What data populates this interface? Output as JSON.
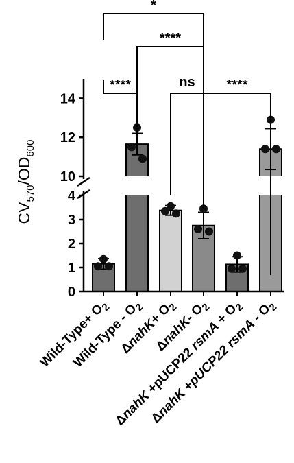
{
  "chart_data": {
    "type": "bar",
    "ylabel": {
      "main": "CV",
      "sub1": "570",
      "mid": "/OD",
      "sub2": "600"
    },
    "categories": [
      {
        "parts": [
          {
            "t": "Wild-Type+ O"
          },
          {
            "t": "2",
            "sub": true
          }
        ]
      },
      {
        "parts": [
          {
            "t": "Wild-Type - O"
          },
          {
            "t": "2",
            "sub": true
          }
        ]
      },
      {
        "parts": [
          {
            "t": "Δ"
          },
          {
            "t": "nahK",
            "it": true
          },
          {
            "t": "+ O"
          },
          {
            "t": "2",
            "sub": true
          }
        ]
      },
      {
        "parts": [
          {
            "t": "Δ"
          },
          {
            "t": "nahK",
            "it": true
          },
          {
            "t": "- O"
          },
          {
            "t": "2",
            "sub": true
          }
        ]
      },
      {
        "parts": [
          {
            "t": "Δ"
          },
          {
            "t": "nahK",
            "it": true
          },
          {
            "t": " +pUCP22 "
          },
          {
            "t": "rsmA",
            "it": true
          },
          {
            "t": " + O"
          },
          {
            "t": "2",
            "sub": true
          }
        ]
      },
      {
        "parts": [
          {
            "t": "Δ"
          },
          {
            "t": "nahK",
            "it": true
          },
          {
            "t": " +"
          },
          {
            "t": "pUCP22 rsmA",
            "it": true
          },
          {
            "t": " - O"
          },
          {
            "t": "2",
            "sub": true
          }
        ]
      }
    ],
    "values": [
      1.15,
      11.65,
      3.38,
      2.75,
      1.13,
      11.4
    ],
    "errors": [
      0.22,
      0.55,
      0.2,
      0.55,
      0.32,
      1.05
    ],
    "points": [
      [
        1.35,
        1.05,
        1.05
      ],
      [
        12.5,
        11.5,
        10.9
      ],
      [
        3.55,
        3.35,
        3.25
      ],
      [
        3.45,
        2.6,
        2.5
      ],
      [
        1.5,
        0.95,
        0.95
      ],
      [
        12.9,
        11.4,
        11.4
      ]
    ],
    "bar_colors": [
      "#6e6e6e",
      "#6e6e6e",
      "#d2d2d2",
      "#8a8a8a",
      "#6e6e6e",
      "#9a9a9a"
    ],
    "y_lower_ticks": [
      "0",
      "1",
      "2",
      "3",
      "4"
    ],
    "y_upper_ticks": [
      "10",
      "12",
      "14"
    ],
    "ylim_lower": [
      0,
      4
    ],
    "ylim_upper": [
      10,
      15
    ],
    "axis_break": true,
    "significance": [
      {
        "from": 0,
        "to": 1,
        "label": "****"
      },
      {
        "from": 2,
        "to": 3,
        "label": "ns"
      },
      {
        "from": 3,
        "to": 5,
        "label": "****"
      },
      {
        "from": 1,
        "to": 3,
        "label": "****"
      },
      {
        "from": 0,
        "to": 3,
        "label": "*"
      }
    ]
  }
}
